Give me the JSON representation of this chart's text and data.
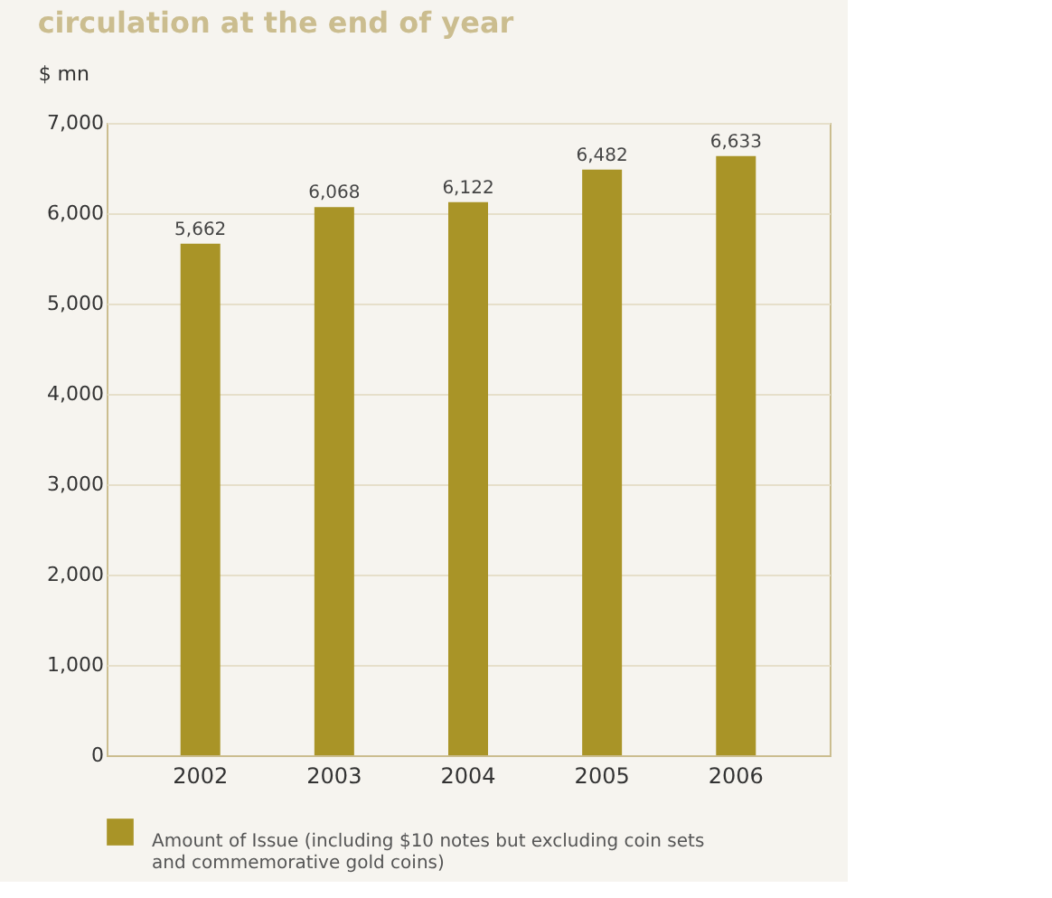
{
  "chart_data": {
    "type": "bar",
    "title": "circulation at the end of year",
    "ylabel": "$ mn",
    "categories": [
      "2002",
      "2003",
      "2004",
      "2005",
      "2006"
    ],
    "series": [
      {
        "name": "Amount of Issue (including $10 notes but excluding coin sets and commemorative gold coins)",
        "color": "#a99427",
        "values": [
          5662,
          6068,
          6122,
          6482,
          6633
        ],
        "value_labels": [
          "5,662",
          "6,068",
          "6,122",
          "6,482",
          "6,633"
        ]
      }
    ],
    "ylim": [
      0,
      7000
    ],
    "yticks": [
      0,
      {
        "value": 1000,
        "label": "1,000"
      },
      {
        "value": 2000,
        "label": "2,000"
      },
      {
        "value": 3000,
        "label": "3,000"
      },
      {
        "value": 4000,
        "label": "4,000"
      },
      {
        "value": 5000,
        "label": "5,000"
      },
      {
        "value": 6000,
        "label": "6,000"
      },
      {
        "value": 7000,
        "label": "7,000"
      }
    ],
    "grid": "y",
    "legend": "bottom"
  }
}
